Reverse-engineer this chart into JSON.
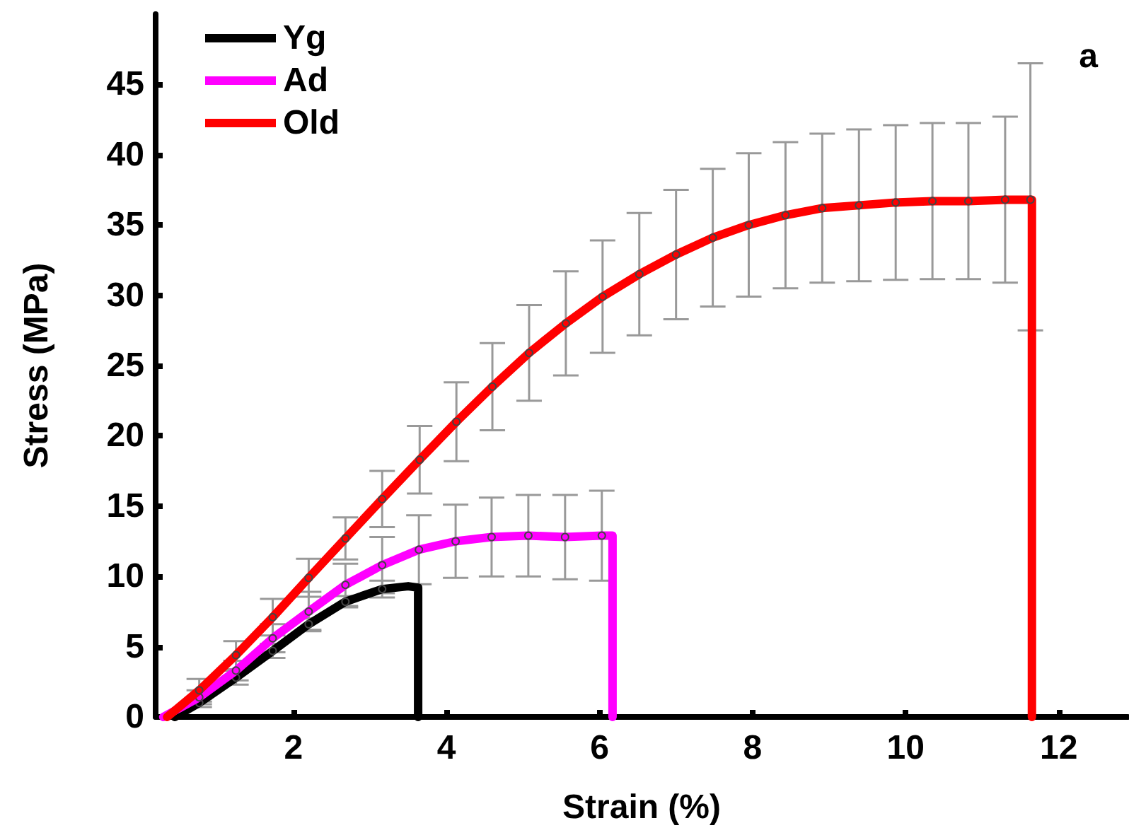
{
  "chart_data": {
    "type": "line",
    "xlabel": "Strain (%)",
    "ylabel": "Stress (MPa)",
    "annotations": [
      "a"
    ],
    "xlim": [
      0.2,
      12.9
    ],
    "ylim": [
      0,
      50
    ],
    "xticks": [
      2,
      4,
      6,
      8,
      10,
      12
    ],
    "yticks": [
      0,
      5,
      10,
      15,
      20,
      25,
      30,
      35,
      40,
      45
    ],
    "grid": false,
    "legend": "top left",
    "marker": "circle",
    "line_style": "solid",
    "series": [
      {
        "name": "Yg",
        "color": "#000000",
        "x": [
          0.45,
          0.77,
          1.25,
          1.73,
          2.2,
          2.68,
          3.16,
          3.5,
          3.63,
          3.63
        ],
        "values": [
          0,
          1.0,
          2.8,
          4.7,
          6.6,
          8.2,
          9.1,
          9.3,
          9.2,
          0
        ],
        "errors": [
          null,
          0.3,
          0.5,
          0.5,
          0.4,
          0.4,
          0.6,
          null,
          null,
          null
        ]
      },
      {
        "name": "Ad",
        "color": "#ff00ff",
        "x": [
          0.3,
          0.77,
          1.25,
          1.73,
          2.2,
          2.68,
          3.16,
          3.64,
          4.12,
          4.59,
          5.07,
          5.55,
          6.03,
          6.17,
          6.17
        ],
        "values": [
          0,
          1.4,
          3.3,
          5.6,
          7.5,
          9.4,
          10.8,
          11.9,
          12.5,
          12.8,
          12.9,
          12.8,
          12.9,
          12.9,
          0
        ],
        "errors": [
          null,
          0.5,
          0.7,
          1.0,
          1.4,
          1.5,
          2.0,
          2.45,
          2.6,
          2.8,
          2.9,
          3.0,
          3.2,
          null,
          null
        ]
      },
      {
        "name": "Old",
        "color": "#ff0000",
        "x": [
          0.35,
          0.77,
          1.25,
          1.73,
          2.2,
          2.68,
          3.16,
          3.65,
          4.13,
          4.6,
          5.08,
          5.56,
          6.04,
          6.52,
          7.0,
          7.48,
          7.95,
          8.43,
          8.91,
          9.39,
          9.87,
          10.35,
          10.82,
          11.3,
          11.63,
          11.65,
          11.65
        ],
        "values": [
          0,
          1.9,
          4.4,
          7.1,
          9.9,
          12.7,
          15.5,
          18.3,
          21.0,
          23.5,
          25.9,
          28.0,
          29.9,
          31.5,
          32.9,
          34.1,
          35.0,
          35.7,
          36.2,
          36.4,
          36.6,
          36.7,
          36.7,
          36.8,
          36.8,
          36.8,
          0
        ],
        "errors": [
          null,
          0.8,
          1.0,
          1.3,
          1.35,
          1.5,
          2.0,
          2.4,
          2.8,
          3.1,
          3.4,
          3.7,
          4.0,
          4.35,
          4.6,
          4.9,
          5.1,
          5.2,
          5.3,
          5.4,
          5.5,
          5.55,
          5.55,
          5.9,
          [
            27.5,
            46.5
          ],
          null,
          null
        ]
      }
    ]
  }
}
